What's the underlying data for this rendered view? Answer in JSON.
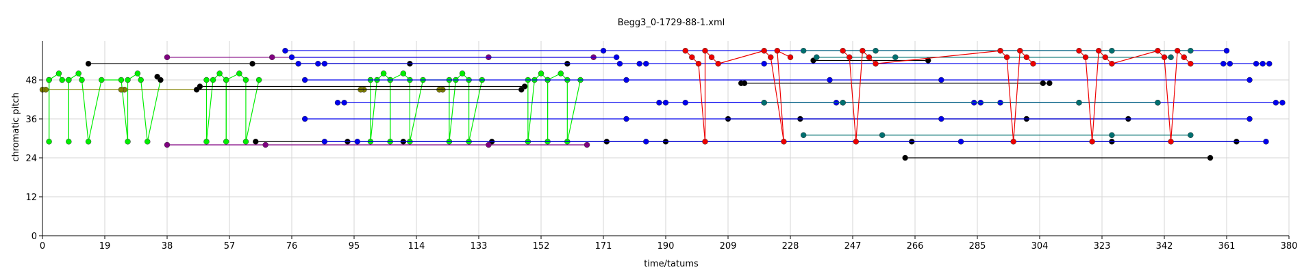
{
  "chart_data": {
    "type": "scatter",
    "title": "Begg3_0-1729-88-1.xml",
    "xlabel": "time/tatums",
    "ylabel": "chromatic pitch",
    "xlim": [
      0,
      380
    ],
    "ylim": [
      0,
      60
    ],
    "x_ticks": [
      0,
      19,
      38,
      57,
      76,
      95,
      114,
      133,
      152,
      171,
      190,
      209,
      228,
      247,
      266,
      285,
      304,
      323,
      342,
      361,
      380
    ],
    "y_ticks": [
      0,
      12,
      24,
      36,
      48
    ],
    "grid": true,
    "legend": "none",
    "series": [
      {
        "color": "#00ee00",
        "kind": "linked",
        "points": [
          [
            2,
            48
          ],
          [
            2,
            29
          ],
          [
            2,
            48
          ],
          [
            5,
            50
          ],
          [
            6,
            48
          ],
          [
            8,
            48
          ],
          [
            8,
            29
          ],
          [
            8,
            48
          ],
          [
            11,
            50
          ],
          [
            12,
            48
          ],
          [
            14,
            29
          ],
          [
            18,
            48
          ],
          [
            24,
            48
          ],
          [
            26,
            29
          ],
          [
            26,
            48
          ],
          [
            29,
            50
          ],
          [
            30,
            48
          ],
          [
            32,
            29
          ],
          [
            36,
            48
          ]
        ]
      },
      {
        "color": "#00ee00",
        "kind": "linked",
        "points": [
          [
            50,
            48
          ],
          [
            50,
            29
          ],
          [
            52,
            48
          ],
          [
            54,
            50
          ],
          [
            56,
            48
          ],
          [
            56,
            29
          ],
          [
            56,
            48
          ],
          [
            60,
            50
          ],
          [
            62,
            48
          ],
          [
            62,
            29
          ],
          [
            66,
            48
          ]
        ]
      },
      {
        "color": "#00ee00",
        "kind": "linked",
        "points": [
          [
            100,
            48
          ],
          [
            100,
            29
          ],
          [
            102,
            48
          ],
          [
            104,
            50
          ],
          [
            106,
            48
          ],
          [
            106,
            29
          ],
          [
            106,
            48
          ],
          [
            110,
            50
          ],
          [
            112,
            48
          ],
          [
            112,
            29
          ],
          [
            116,
            48
          ],
          [
            124,
            48
          ],
          [
            124,
            29
          ],
          [
            126,
            48
          ],
          [
            128,
            50
          ],
          [
            130,
            48
          ],
          [
            130,
            29
          ],
          [
            134,
            48
          ]
        ]
      },
      {
        "color": "#00ee00",
        "kind": "linked",
        "points": [
          [
            148,
            48
          ],
          [
            148,
            29
          ],
          [
            150,
            48
          ],
          [
            152,
            50
          ],
          [
            154,
            48
          ],
          [
            154,
            29
          ],
          [
            154,
            48
          ],
          [
            158,
            50
          ],
          [
            160,
            48
          ],
          [
            160,
            29
          ],
          [
            164,
            48
          ]
        ]
      },
      {
        "color": "#808000",
        "kind": "sustain",
        "points": [
          [
            1,
            45
          ],
          [
            0,
            45
          ],
          [
            25,
            45
          ],
          [
            24,
            45
          ],
          [
            98,
            45
          ],
          [
            97,
            45
          ],
          [
            122,
            45
          ],
          [
            121,
            45
          ]
        ]
      },
      {
        "color": "#000000",
        "kind": "sustain",
        "points": [
          [
            14,
            53
          ],
          [
            112,
            53
          ],
          [
            35,
            49
          ],
          [
            36,
            48
          ],
          [
            48,
            46
          ],
          [
            47,
            45
          ],
          [
            64,
            53
          ],
          [
            147,
            46
          ],
          [
            146,
            45
          ],
          [
            160,
            53
          ],
          [
            65,
            29
          ],
          [
            93,
            29
          ],
          [
            110,
            29
          ],
          [
            137,
            29
          ],
          [
            172,
            29
          ],
          [
            190,
            29
          ],
          [
            213,
            47
          ],
          [
            214,
            47
          ],
          [
            209,
            36
          ],
          [
            231,
            36
          ],
          [
            265,
            29
          ],
          [
            270,
            54
          ],
          [
            235,
            54
          ],
          [
            305,
            47
          ],
          [
            307,
            47
          ],
          [
            300,
            36
          ],
          [
            326,
            29
          ],
          [
            331,
            36
          ],
          [
            263,
            24
          ],
          [
            356,
            24
          ],
          [
            364,
            29
          ]
        ]
      },
      {
        "color": "#800080",
        "kind": "sustain",
        "points": [
          [
            38,
            28
          ],
          [
            68,
            28
          ],
          [
            136,
            28
          ],
          [
            166,
            28
          ],
          [
            38,
            55
          ],
          [
            70,
            55
          ],
          [
            136,
            55
          ],
          [
            168,
            55
          ]
        ]
      },
      {
        "color": "#0000ee",
        "kind": "sustain",
        "points": [
          [
            74,
            57
          ],
          [
            171,
            57
          ],
          [
            361,
            57
          ],
          [
            76,
            55
          ],
          [
            78,
            53
          ],
          [
            84,
            53
          ],
          [
            86,
            53
          ],
          [
            90,
            41
          ],
          [
            92,
            41
          ],
          [
            80,
            48
          ],
          [
            80,
            36
          ],
          [
            86,
            29
          ],
          [
            96,
            29
          ],
          [
            175,
            55
          ],
          [
            176,
            53
          ],
          [
            182,
            53
          ],
          [
            184,
            53
          ],
          [
            188,
            41
          ],
          [
            190,
            41
          ],
          [
            178,
            48
          ],
          [
            178,
            36
          ],
          [
            184,
            29
          ],
          [
            220,
            53
          ],
          [
            240,
            48
          ],
          [
            242,
            41
          ],
          [
            274,
            48
          ],
          [
            274,
            36
          ],
          [
            280,
            29
          ],
          [
            284,
            41
          ],
          [
            286,
            41
          ],
          [
            360,
            53
          ],
          [
            362,
            53
          ],
          [
            370,
            53
          ],
          [
            372,
            53
          ],
          [
            374,
            53
          ],
          [
            368,
            48
          ],
          [
            368,
            36
          ],
          [
            373,
            29
          ],
          [
            376,
            41
          ],
          [
            378,
            41
          ]
        ]
      },
      {
        "color": "#0000ee",
        "kind": "sustain",
        "points": [
          [
            196,
            41
          ],
          [
            220,
            41
          ],
          [
            244,
            41
          ],
          [
            292,
            41
          ],
          [
            316,
            41
          ],
          [
            340,
            41
          ]
        ]
      },
      {
        "color": "#007070",
        "kind": "sustain",
        "points": [
          [
            232,
            57
          ],
          [
            254,
            57
          ],
          [
            326,
            57
          ],
          [
            350,
            57
          ],
          [
            236,
            55
          ],
          [
            260,
            55
          ],
          [
            344,
            55
          ],
          [
            232,
            31
          ],
          [
            256,
            31
          ],
          [
            326,
            31
          ],
          [
            350,
            31
          ],
          [
            220,
            41
          ],
          [
            244,
            41
          ],
          [
            316,
            41
          ],
          [
            340,
            41
          ]
        ]
      },
      {
        "color": "#ee0000",
        "kind": "linked",
        "points": [
          [
            196,
            57
          ],
          [
            198,
            55
          ],
          [
            200,
            53
          ],
          [
            202,
            29
          ],
          [
            202,
            57
          ],
          [
            204,
            55
          ],
          [
            206,
            53
          ],
          [
            220,
            57
          ],
          [
            222,
            55
          ],
          [
            226,
            29
          ],
          [
            224,
            57
          ],
          [
            228,
            55
          ]
        ]
      },
      {
        "color": "#ee0000",
        "kind": "linked",
        "points": [
          [
            244,
            57
          ],
          [
            246,
            55
          ],
          [
            248,
            29
          ],
          [
            250,
            57
          ],
          [
            252,
            55
          ],
          [
            254,
            53
          ],
          [
            292,
            57
          ],
          [
            294,
            55
          ],
          [
            296,
            29
          ],
          [
            298,
            57
          ],
          [
            300,
            55
          ],
          [
            302,
            53
          ]
        ]
      },
      {
        "color": "#ee0000",
        "kind": "linked",
        "points": [
          [
            316,
            57
          ],
          [
            318,
            55
          ],
          [
            320,
            29
          ],
          [
            322,
            57
          ],
          [
            324,
            55
          ],
          [
            326,
            53
          ],
          [
            340,
            57
          ],
          [
            342,
            55
          ],
          [
            344,
            29
          ],
          [
            346,
            57
          ],
          [
            348,
            55
          ],
          [
            350,
            53
          ]
        ]
      }
    ]
  }
}
